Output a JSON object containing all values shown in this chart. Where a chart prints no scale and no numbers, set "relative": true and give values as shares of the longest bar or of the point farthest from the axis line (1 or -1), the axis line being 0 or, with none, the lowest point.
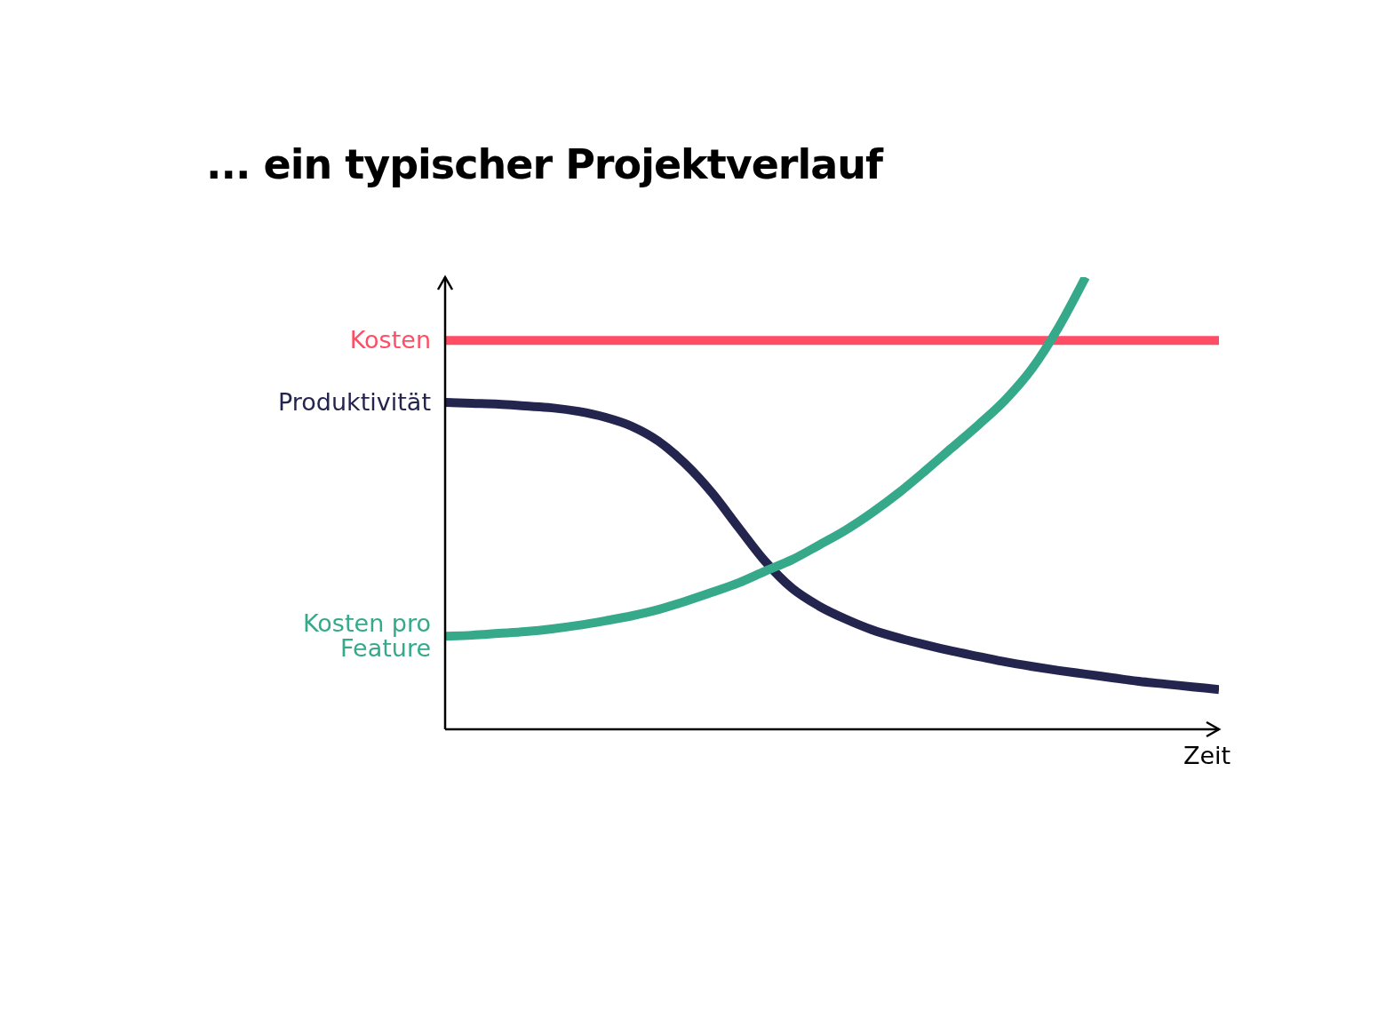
{
  "chart_data": {
    "type": "line",
    "title": "... ein typischer Projektverlauf",
    "xlabel": "Zeit",
    "relative": true,
    "categories": [
      null,
      null,
      null,
      null,
      null,
      null,
      null,
      null,
      null,
      null,
      null,
      null,
      null,
      null,
      null,
      null,
      null,
      null,
      null,
      null,
      null,
      null,
      null,
      null,
      null,
      null,
      null,
      null,
      null,
      null
    ],
    "series": [
      {
        "name": "Kosten",
        "color": "#ff4d66",
        "values": [
          0.86,
          0.86,
          0.86,
          0.86,
          0.86,
          0.86,
          0.86,
          0.86,
          0.86,
          0.86,
          0.86,
          0.86,
          0.86,
          0.86,
          0.86,
          0.86,
          0.86,
          0.86,
          0.86,
          0.86,
          0.86,
          0.86,
          0.86,
          0.86,
          0.86,
          0.86,
          0.86,
          0.86,
          0.86,
          0.86
        ]
      },
      {
        "name": "Produktivität",
        "color": "#24254f",
        "values": [
          0.723,
          0.721,
          0.719,
          0.715,
          0.711,
          0.703,
          0.69,
          0.67,
          0.637,
          0.587,
          0.523,
          0.446,
          0.371,
          0.312,
          0.273,
          0.244,
          0.22,
          0.202,
          0.187,
          0.173,
          0.161,
          0.149,
          0.139,
          0.13,
          0.122,
          0.114,
          0.106,
          0.1,
          0.094,
          0.088
        ]
      },
      {
        "name": "Kosten pro Feature",
        "color": "#35a98a",
        "values": [
          0.206,
          0.208,
          0.212,
          0.216,
          0.222,
          0.23,
          0.24,
          0.251,
          0.265,
          0.283,
          0.303,
          0.324,
          0.35,
          0.375,
          0.407,
          0.44,
          0.479,
          0.523,
          0.572,
          0.623,
          0.674,
          0.729,
          0.798,
          0.89,
          1,
          null,
          null,
          null,
          null,
          null
        ]
      }
    ]
  }
}
